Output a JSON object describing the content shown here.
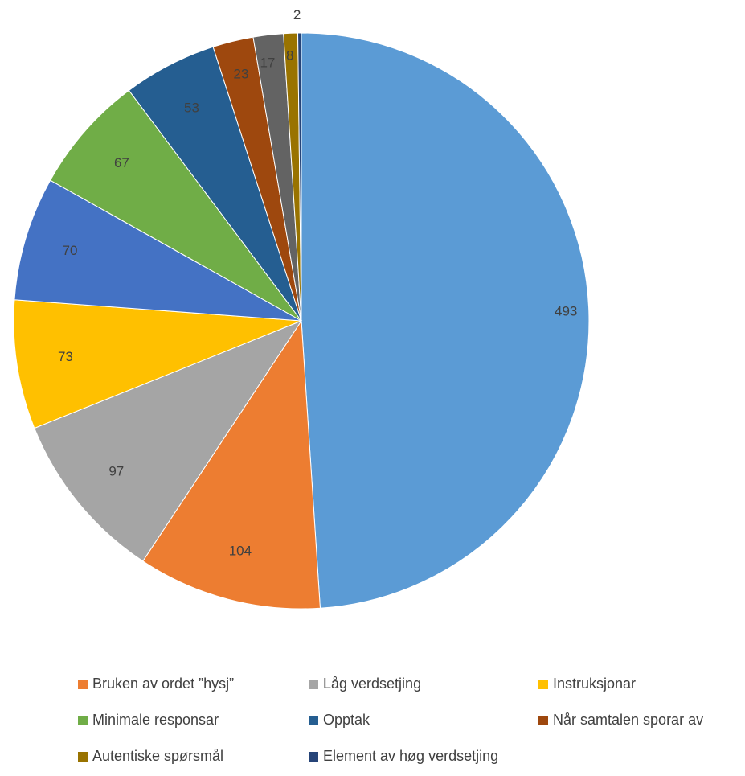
{
  "chart_data": {
    "type": "pie",
    "start_angle_deg": 0,
    "direction": "clockwise",
    "slices": [
      {
        "value": 493,
        "label": "493",
        "color": "#5B9BD5"
      },
      {
        "value": 104,
        "label": "104",
        "color": "#ED7D31",
        "name": "Bruken av ordet ”hysj”"
      },
      {
        "value": 97,
        "label": "97",
        "color": "#A5A5A5",
        "name": "Låg verdsetjing"
      },
      {
        "value": 73,
        "label": "73",
        "color": "#FFC000",
        "name": "Instruksjonar"
      },
      {
        "value": 70,
        "label": "70",
        "color": "#4472C4"
      },
      {
        "value": 67,
        "label": "67",
        "color": "#70AD47",
        "name": "Minimale responsar"
      },
      {
        "value": 53,
        "label": "53",
        "color": "#255E91",
        "name": "Opptak"
      },
      {
        "value": 23,
        "label": "23",
        "color": "#9E480E",
        "name": "Når samtalen sporar av"
      },
      {
        "value": 17,
        "label": "17",
        "color": "#636363"
      },
      {
        "value": 8,
        "label": "8",
        "color": "#997300",
        "name": "Autentiske spørsmål"
      },
      {
        "value": 2,
        "label": "2",
        "color": "#264478",
        "name": "Element av høg verdsetjing"
      }
    ],
    "legend_placement": "bottom",
    "legend": [
      {
        "name": "Bruken av ordet ”hysj”",
        "color": "#ED7D31"
      },
      {
        "name": "Låg verdsetjing",
        "color": "#A5A5A5"
      },
      {
        "name": "Instruksjonar",
        "color": "#FFC000"
      },
      {
        "name": "Minimale responsar",
        "color": "#70AD47"
      },
      {
        "name": "Opptak",
        "color": "#255E91"
      },
      {
        "name": "Når samtalen sporar av",
        "color": "#9E480E"
      },
      {
        "name": "Autentiske spørsmål",
        "color": "#997300"
      },
      {
        "name": "Element av høg verdsetjing",
        "color": "#264478"
      }
    ]
  }
}
